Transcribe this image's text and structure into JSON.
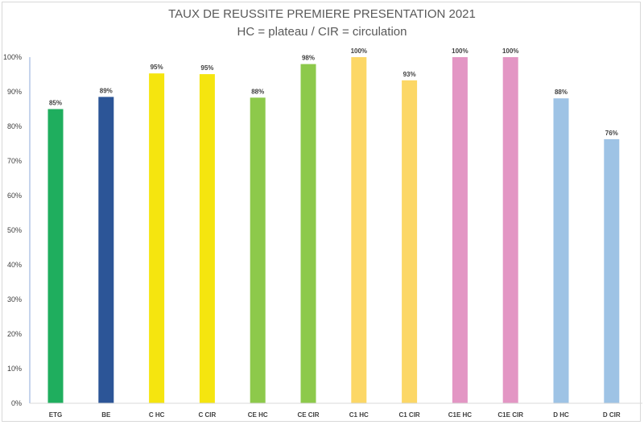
{
  "chart_data": {
    "type": "bar",
    "title_lines": [
      "TAUX DE REUSSITE PREMIERE PRESENTATION 2021",
      "HC = plateau / CIR = circulation"
    ],
    "xlabel": "",
    "ylabel": "",
    "ylim": [
      0,
      100
    ],
    "y_ticks": [
      {
        "value": 0,
        "label": "0%"
      },
      {
        "value": 10,
        "label": "10%"
      },
      {
        "value": 20,
        "label": "20%"
      },
      {
        "value": 30,
        "label": "30%"
      },
      {
        "value": 40,
        "label": "40%"
      },
      {
        "value": 50,
        "label": "50%"
      },
      {
        "value": 60,
        "label": "60%"
      },
      {
        "value": 70,
        "label": "70%"
      },
      {
        "value": 80,
        "label": "80%"
      },
      {
        "value": 90,
        "label": "90%"
      },
      {
        "value": 100,
        "label": "100%"
      }
    ],
    "grid": false,
    "legend": "none",
    "bars": [
      {
        "category": "ETG",
        "value": 85,
        "label": "85%",
        "color": "#1fae5e"
      },
      {
        "category": "BE",
        "value": 88.5,
        "label": "89%",
        "color": "#2c5597"
      },
      {
        "category": "C HC",
        "value": 95.3,
        "label": "95%",
        "color": "#f5e50f"
      },
      {
        "category": "C CIR",
        "value": 95.1,
        "label": "95%",
        "color": "#f5e50f"
      },
      {
        "category": "CE HC",
        "value": 88.3,
        "label": "88%",
        "color": "#8dc94b"
      },
      {
        "category": "CE CIR",
        "value": 98,
        "label": "98%",
        "color": "#8dc94b"
      },
      {
        "category": "C1 HC",
        "value": 100,
        "label": "100%",
        "color": "#fcd766"
      },
      {
        "category": "C1 CIR",
        "value": 93.3,
        "label": "93%",
        "color": "#fcd766"
      },
      {
        "category": "C1E HC",
        "value": 100,
        "label": "100%",
        "color": "#e396c4"
      },
      {
        "category": "C1E CIR",
        "value": 100,
        "label": "100%",
        "color": "#e396c4"
      },
      {
        "category": "D HC",
        "value": 88.1,
        "label": "88%",
        "color": "#9ec3e5"
      },
      {
        "category": "D CIR",
        "value": 76.3,
        "label": "76%",
        "color": "#9ec3e5"
      }
    ]
  }
}
